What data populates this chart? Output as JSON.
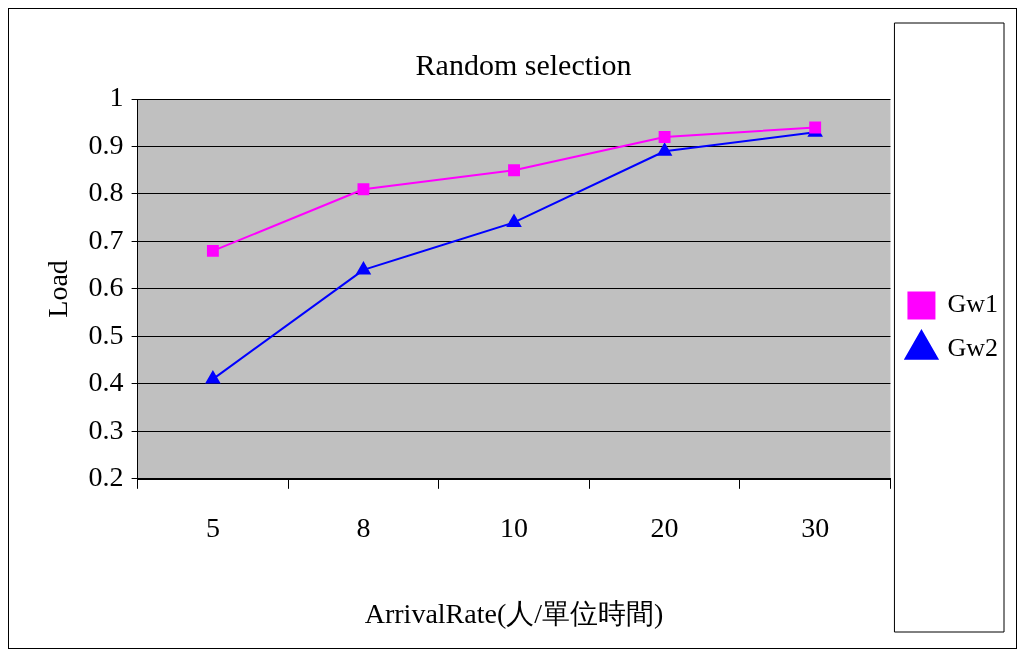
{
  "chart_data": {
    "type": "line",
    "title": "Random selection",
    "xlabel": "ArrivalRate(人/單位時間)",
    "ylabel": "Load",
    "categories": [
      "5",
      "8",
      "10",
      "20",
      "30"
    ],
    "series": [
      {
        "name": "Gw1",
        "color": "#ff00ff",
        "marker": "square",
        "values": [
          0.68,
          0.81,
          0.85,
          0.92,
          0.94
        ]
      },
      {
        "name": "Gw2",
        "color": "#0000ff",
        "marker": "triangle",
        "values": [
          0.41,
          0.64,
          0.74,
          0.89,
          0.93
        ]
      }
    ],
    "ylim": [
      0.2,
      1
    ],
    "yticks": [
      0.2,
      0.3,
      0.4,
      0.5,
      0.6,
      0.7,
      0.8,
      0.9,
      1
    ],
    "grid": "y",
    "legend": "right"
  }
}
